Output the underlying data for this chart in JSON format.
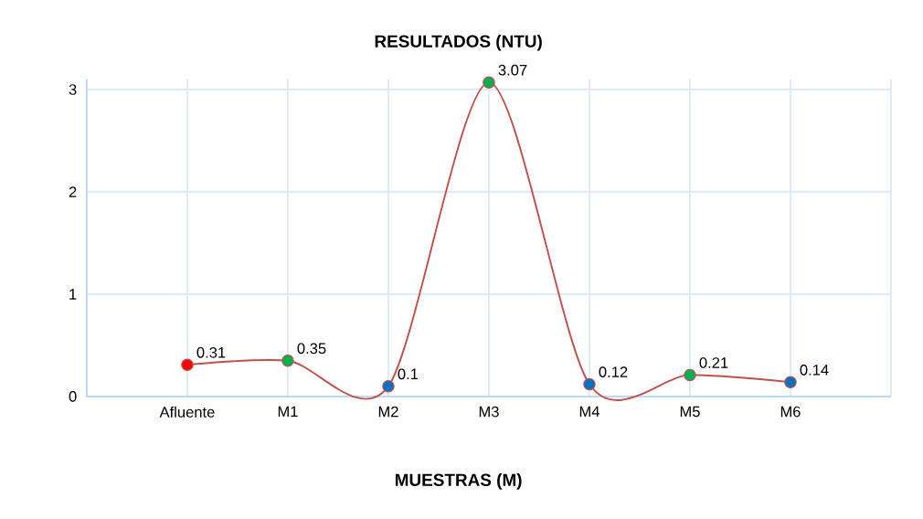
{
  "chart_data": {
    "type": "line",
    "title": "RESULTADOS (NTU)",
    "xlabel": "MUESTRAS (M)",
    "categories": [
      "Afluente",
      "M1",
      "M2",
      "M3",
      "M4",
      "M5",
      "M6"
    ],
    "values": [
      0.31,
      0.35,
      0.1,
      3.07,
      0.12,
      0.21,
      0.14
    ],
    "color": "#c0504d",
    "colors": [
      "#ff0000",
      "#00b050",
      "#0070c0",
      "#00b050",
      "#0070c0",
      "#00b050",
      "#0070c0"
    ],
    "ylim": [
      0,
      3.1
    ],
    "yticks": [
      0,
      1,
      2,
      3
    ],
    "grid": true,
    "marker": "circle",
    "line_style": "solid",
    "data_labels": true
  }
}
